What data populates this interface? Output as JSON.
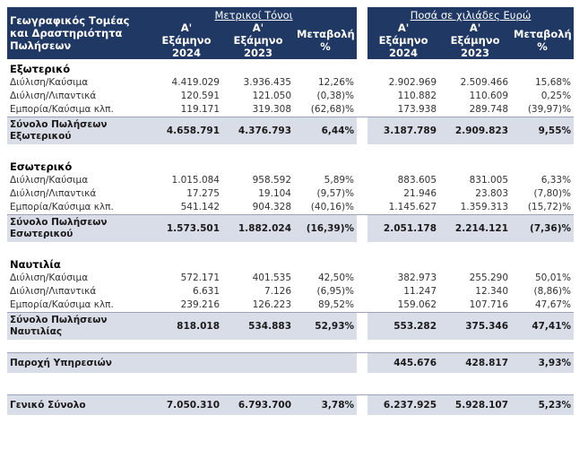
{
  "header": {
    "label": "Γεωγραφικός Τομέας\nκαι Δραστηριότητα\nΠωλήσεων",
    "groups": [
      "Μετρικοί Τόνοι",
      "Ποσά σε χιλιάδες Ευρώ"
    ],
    "columns": [
      "Α'\nΕξάμηνο\n2024",
      "Α'\nΕξάμηνο\n2023",
      "Μεταβολή\n%",
      "Α'\nΕξάμηνο\n2024",
      "Α'\nΕξάμηνο\n2023",
      "Μεταβολή\n%"
    ]
  },
  "sections": [
    {
      "title": "Εξωτερικό",
      "rows": [
        {
          "label": "Διύλιση/Καύσιμα",
          "values": [
            "4.419.029",
            "3.936.435",
            "12,26%",
            "2.902.969",
            "2.509.466",
            "15,68%"
          ]
        },
        {
          "label": "Διύλιση/Λιπαντικά",
          "values": [
            "120.591",
            "121.050",
            "(0,38)%",
            "110.882",
            "110.609",
            "0,25%"
          ]
        },
        {
          "label": "Εμπορία/Καύσιμα κλπ.",
          "values": [
            "119.171",
            "319.308",
            "(62,68)%",
            "173.938",
            "289.748",
            "(39,97)%"
          ]
        }
      ],
      "total": {
        "label": "Σύνολο Πωλήσεων\nΕξωτερικού",
        "values": [
          "4.658.791",
          "4.376.793",
          "6,44%",
          "3.187.789",
          "2.909.823",
          "9,55%"
        ]
      }
    },
    {
      "title": "Εσωτερικό",
      "rows": [
        {
          "label": "Διύλιση/Καύσιμα",
          "values": [
            "1.015.084",
            "958.592",
            "5,89%",
            "883.605",
            "831.005",
            "6,33%"
          ]
        },
        {
          "label": "Διύλιση/Λιπαντικά",
          "values": [
            "17.275",
            "19.104",
            "(9,57)%",
            "21.946",
            "23.803",
            "(7,80)%"
          ]
        },
        {
          "label": "Εμπορία/Καύσιμα κλπ.",
          "values": [
            "541.142",
            "904.328",
            "(40,16)%",
            "1.145.627",
            "1.359.313",
            "(15,72)%"
          ]
        }
      ],
      "total": {
        "label": "Σύνολο Πωλήσεων\nΕσωτερικού",
        "values": [
          "1.573.501",
          "1.882.024",
          "(16,39)%",
          "2.051.178",
          "2.214.121",
          "(7,36)%"
        ]
      }
    },
    {
      "title": "Ναυτιλία",
      "rows": [
        {
          "label": "Διύλιση/Καύσιμα",
          "values": [
            "572.171",
            "401.535",
            "42,50%",
            "382.973",
            "255.290",
            "50,01%"
          ]
        },
        {
          "label": "Διύλιση/Λιπαντικά",
          "values": [
            "6.631",
            "7.126",
            "(6,95)%",
            "11.247",
            "12.340",
            "(8,86)%"
          ]
        },
        {
          "label": "Εμπορία/Καύσιμα κλπ.",
          "values": [
            "239.216",
            "126.223",
            "89,52%",
            "159.062",
            "107.716",
            "47,67%"
          ]
        }
      ],
      "total": {
        "label": "Σύνολο Πωλήσεων\nΝαυτιλίας",
        "values": [
          "818.018",
          "534.883",
          "52,93%",
          "553.282",
          "375.346",
          "47,41%"
        ]
      }
    }
  ],
  "services": {
    "label": "Παροχή Υπηρεσιών",
    "values": [
      null,
      null,
      null,
      "445.676",
      "428.817",
      "3,93%"
    ]
  },
  "grand_total": {
    "label": "Γενικό Σύνολο",
    "values": [
      "7.050.310",
      "6.793.700",
      "3,78%",
      "6.237.925",
      "5.928.107",
      "5,23%"
    ]
  }
}
